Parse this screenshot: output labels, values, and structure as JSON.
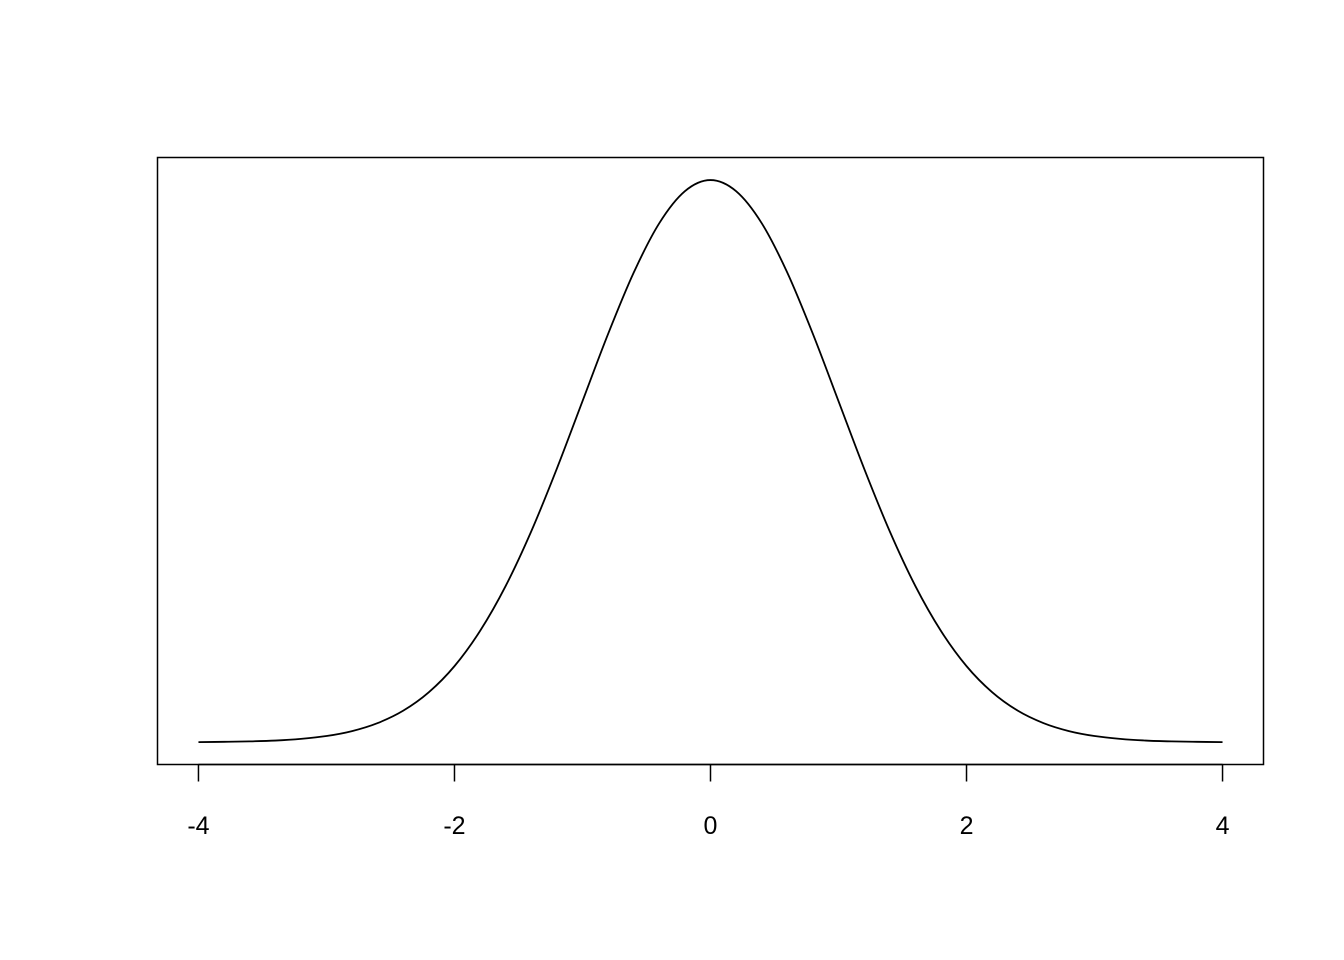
{
  "chart_data": {
    "type": "line",
    "title": "",
    "xlabel": "",
    "ylabel": "",
    "xlim": [
      -4,
      4
    ],
    "ylim": [
      -0.0158,
      0.4149
    ],
    "grid": false,
    "y_axis_shown": false,
    "line_color": "#000000",
    "x_ticks": [
      -4,
      -2,
      0,
      2,
      4
    ],
    "x_tick_labels": [
      "-4",
      "-2",
      "0",
      "2",
      "4"
    ],
    "x": [
      -4.0,
      -3.8,
      -3.6,
      -3.4,
      -3.2,
      -3.0,
      -2.8,
      -2.6,
      -2.4,
      -2.2,
      -2.0,
      -1.8,
      -1.6,
      -1.4,
      -1.2,
      -1.0,
      -0.8,
      -0.6,
      -0.4,
      -0.2,
      0.0,
      0.2,
      0.4,
      0.6,
      0.8,
      1.0,
      1.2,
      1.4,
      1.6,
      1.8,
      2.0,
      2.2,
      2.4,
      2.6,
      2.8,
      3.0,
      3.2,
      3.4,
      3.6,
      3.8,
      4.0
    ],
    "y": [
      0.0001,
      0.0003,
      0.0006,
      0.0012,
      0.0024,
      0.0044,
      0.0079,
      0.0136,
      0.0224,
      0.0355,
      0.054,
      0.079,
      0.1109,
      0.1497,
      0.1942,
      0.242,
      0.2897,
      0.3332,
      0.3683,
      0.391,
      0.3989,
      0.391,
      0.3683,
      0.3332,
      0.2897,
      0.242,
      0.1942,
      0.1497,
      0.1109,
      0.079,
      0.054,
      0.0355,
      0.0224,
      0.0136,
      0.0079,
      0.0044,
      0.0024,
      0.0012,
      0.0006,
      0.0003,
      0.0001
    ]
  }
}
